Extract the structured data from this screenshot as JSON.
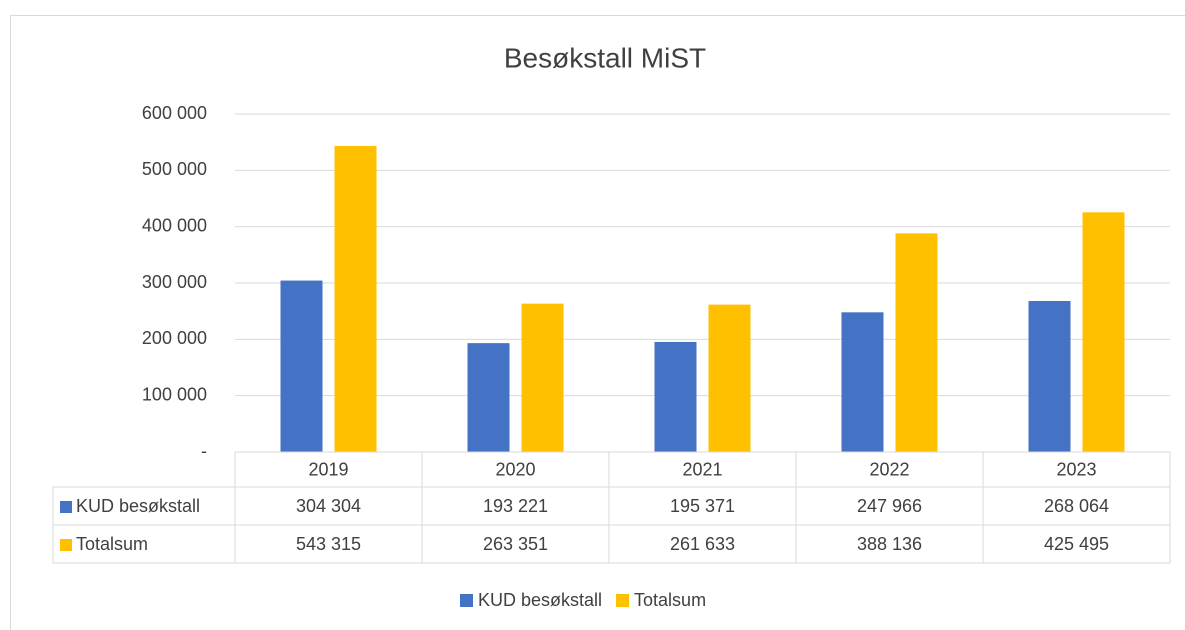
{
  "chart_data": {
    "type": "bar",
    "title": "Besøkstall MiST",
    "categories": [
      "2019",
      "2020",
      "2021",
      "2022",
      "2023"
    ],
    "series": [
      {
        "name": "KUD besøkstall",
        "color": "#4472c4",
        "values": [
          304304,
          193221,
          195371,
          247966,
          268064
        ],
        "value_labels": [
          "304 304",
          "193 221",
          "195 371",
          "247 966",
          "268 064"
        ]
      },
      {
        "name": "Totalsum",
        "color": "#ffc000",
        "values": [
          543315,
          263351,
          261633,
          388136,
          425495
        ],
        "value_labels": [
          "543 315",
          "263 351",
          "261 633",
          "388 136",
          "425 495"
        ]
      }
    ],
    "ylim": [
      0,
      600000
    ],
    "yticks": [
      {
        "value": 0,
        "label": "-"
      },
      {
        "value": 100000,
        "label": "100 000"
      },
      {
        "value": 200000,
        "label": "200 000"
      },
      {
        "value": 300000,
        "label": "300 000"
      },
      {
        "value": 400000,
        "label": "400 000"
      },
      {
        "value": 500000,
        "label": "500 000"
      },
      {
        "value": 600000,
        "label": "600 000"
      }
    ],
    "grid": true,
    "data_table": true,
    "legend": "bottom"
  }
}
